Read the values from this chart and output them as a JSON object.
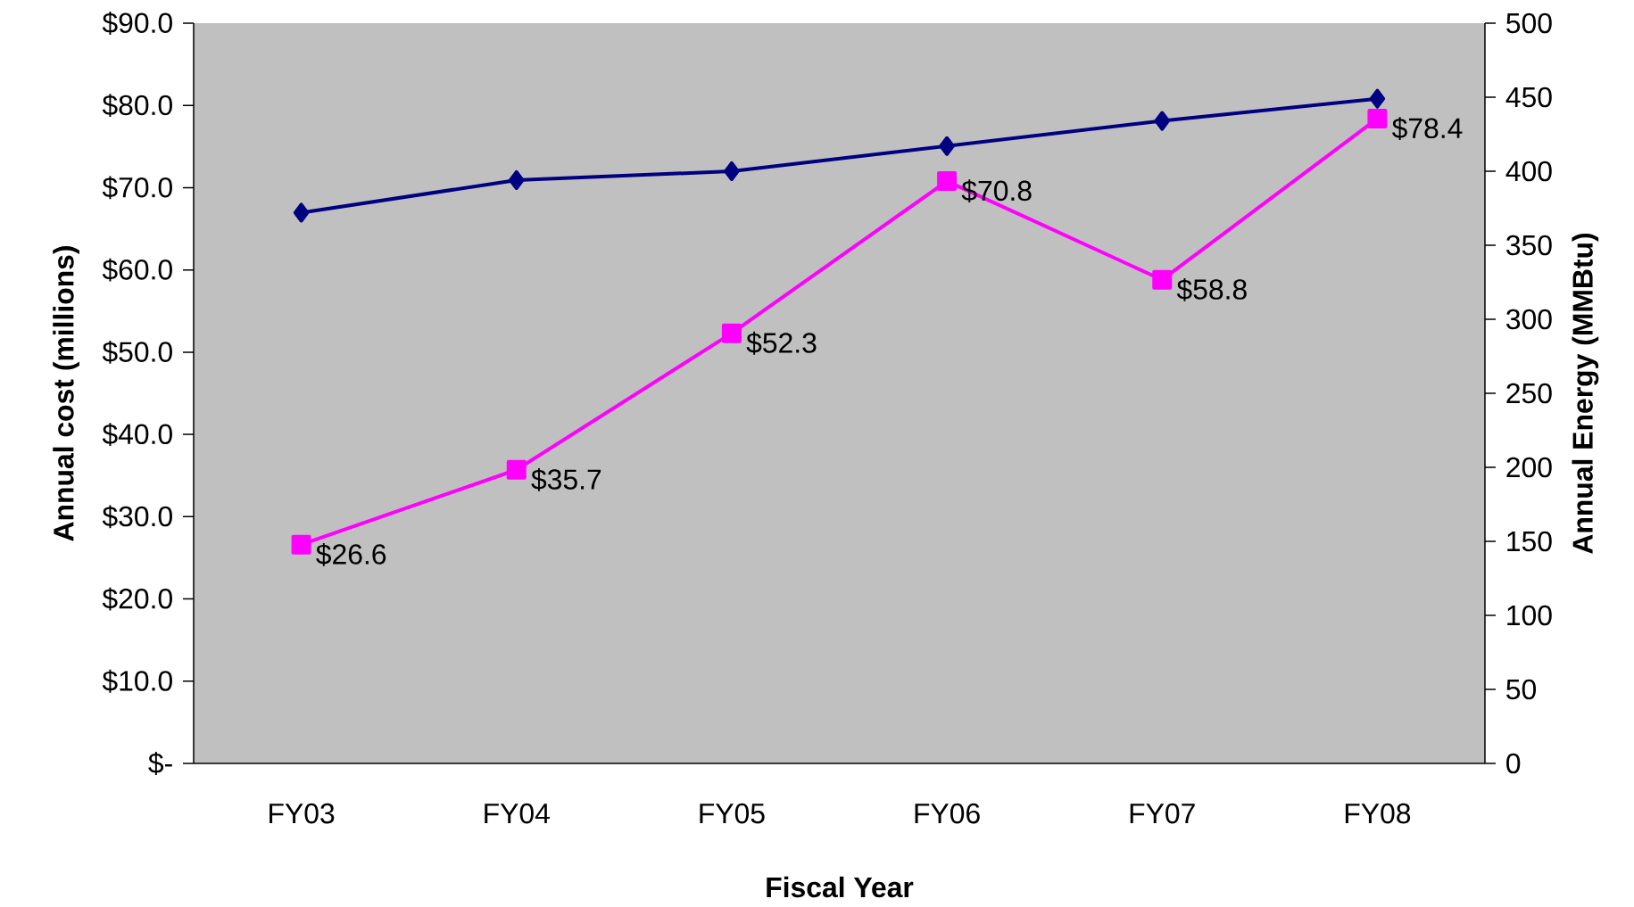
{
  "chart_data": {
    "type": "line",
    "xlabel": "Fiscal Year",
    "ylabel": "Annual cost (millions)",
    "y2label": "Annual Energy (MMBtu)",
    "categories": [
      "FY03",
      "FY04",
      "FY05",
      "FY06",
      "FY07",
      "FY08"
    ],
    "series": [
      {
        "color": "#ff00ff",
        "marker": "square",
        "values": [
          26.6,
          35.7,
          52.3,
          70.8,
          58.8,
          78.4
        ],
        "value_labels": [
          "$26.6",
          "$35.7",
          "$52.3",
          "$70.8",
          "$58.8",
          "$78.4"
        ]
      },
      {
        "color": "#000080",
        "marker": "diamond",
        "axis": "y2",
        "values": [
          372,
          394,
          400,
          417,
          434,
          449
        ]
      }
    ],
    "ylim": [
      0,
      90
    ],
    "yticks": [
      {
        "value": 0,
        "label": "$-"
      },
      {
        "value": 10,
        "label": "$10.0"
      },
      {
        "value": 20,
        "label": "$20.0"
      },
      {
        "value": 30,
        "label": "$30.0"
      },
      {
        "value": 40,
        "label": "$40.0"
      },
      {
        "value": 50,
        "label": "$50.0"
      },
      {
        "value": 60,
        "label": "$60.0"
      },
      {
        "value": 70,
        "label": "$70.0"
      },
      {
        "value": 80,
        "label": "$80.0"
      },
      {
        "value": 90,
        "label": "$90.0"
      }
    ],
    "y2lim": [
      0,
      500
    ],
    "y2ticks": [
      0,
      50,
      100,
      150,
      200,
      250,
      300,
      350,
      400,
      450,
      500
    ]
  }
}
